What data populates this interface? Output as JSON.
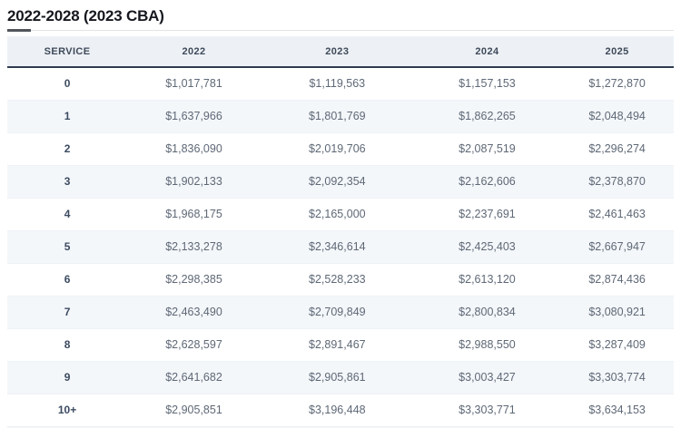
{
  "title": "2022-2028 (2023 CBA)",
  "table": {
    "columns": [
      "SERVICE",
      "2022",
      "2023",
      "2024",
      "2025"
    ],
    "rows": [
      {
        "service": "0",
        "values": [
          "$1,017,781",
          "$1,119,563",
          "$1,157,153",
          "$1,272,870"
        ]
      },
      {
        "service": "1",
        "values": [
          "$1,637,966",
          "$1,801,769",
          "$1,862,265",
          "$2,048,494"
        ]
      },
      {
        "service": "2",
        "values": [
          "$1,836,090",
          "$2,019,706",
          "$2,087,519",
          "$2,296,274"
        ]
      },
      {
        "service": "3",
        "values": [
          "$1,902,133",
          "$2,092,354",
          "$2,162,606",
          "$2,378,870"
        ]
      },
      {
        "service": "4",
        "values": [
          "$1,968,175",
          "$2,165,000",
          "$2,237,691",
          "$2,461,463"
        ]
      },
      {
        "service": "5",
        "values": [
          "$2,133,278",
          "$2,346,614",
          "$2,425,403",
          "$2,667,947"
        ]
      },
      {
        "service": "6",
        "values": [
          "$2,298,385",
          "$2,528,233",
          "$2,613,120",
          "$2,874,436"
        ]
      },
      {
        "service": "7",
        "values": [
          "$2,463,490",
          "$2,709,849",
          "$2,800,834",
          "$3,080,921"
        ]
      },
      {
        "service": "8",
        "values": [
          "$2,628,597",
          "$2,891,467",
          "$2,988,550",
          "$3,287,409"
        ]
      },
      {
        "service": "9",
        "values": [
          "$2,641,682",
          "$2,905,861",
          "$3,003,427",
          "$3,303,774"
        ]
      },
      {
        "service": "10+",
        "values": [
          "$2,905,851",
          "$3,196,448",
          "$3,303,771",
          "$3,634,153"
        ]
      }
    ]
  },
  "chart_data": {
    "type": "table",
    "title": "2022-2028 (2023 CBA)",
    "columns": [
      "SERVICE",
      "2022",
      "2023",
      "2024",
      "2025"
    ],
    "rows": [
      [
        "0",
        "$1,017,781",
        "$1,119,563",
        "$1,157,153",
        "$1,272,870"
      ],
      [
        "1",
        "$1,637,966",
        "$1,801,769",
        "$1,862,265",
        "$2,048,494"
      ],
      [
        "2",
        "$1,836,090",
        "$2,019,706",
        "$2,087,519",
        "$2,296,274"
      ],
      [
        "3",
        "$1,902,133",
        "$2,092,354",
        "$2,162,606",
        "$2,378,870"
      ],
      [
        "4",
        "$1,968,175",
        "$2,165,000",
        "$2,237,691",
        "$2,461,463"
      ],
      [
        "5",
        "$2,133,278",
        "$2,346,614",
        "$2,425,403",
        "$2,667,947"
      ],
      [
        "6",
        "$2,298,385",
        "$2,528,233",
        "$2,613,120",
        "$2,874,436"
      ],
      [
        "7",
        "$2,463,490",
        "$2,709,849",
        "$2,800,834",
        "$3,080,921"
      ],
      [
        "8",
        "$2,628,597",
        "$2,891,467",
        "$2,988,550",
        "$3,287,409"
      ],
      [
        "9",
        "$2,641,682",
        "$2,905,861",
        "$3,003,427",
        "$3,303,774"
      ],
      [
        "10+",
        "$2,905,851",
        "$3,196,448",
        "$3,303,771",
        "$3,634,153"
      ]
    ],
    "layout_hints": {
      "striped_rows": true,
      "header_background": "#edf1f6",
      "alternate_row_background": "#f4f7fa",
      "header_border_color": "#2f3c50",
      "cell_alignment": "center"
    }
  },
  "colors": {
    "header_background": "#edf1f6",
    "header_border": "#2f3c50",
    "alternate_row_background": "#f4f7fa",
    "title_text": "#15181e",
    "header_text": "#3f4a59",
    "service_text": "#3c4b61",
    "value_text": "#5e6876"
  }
}
